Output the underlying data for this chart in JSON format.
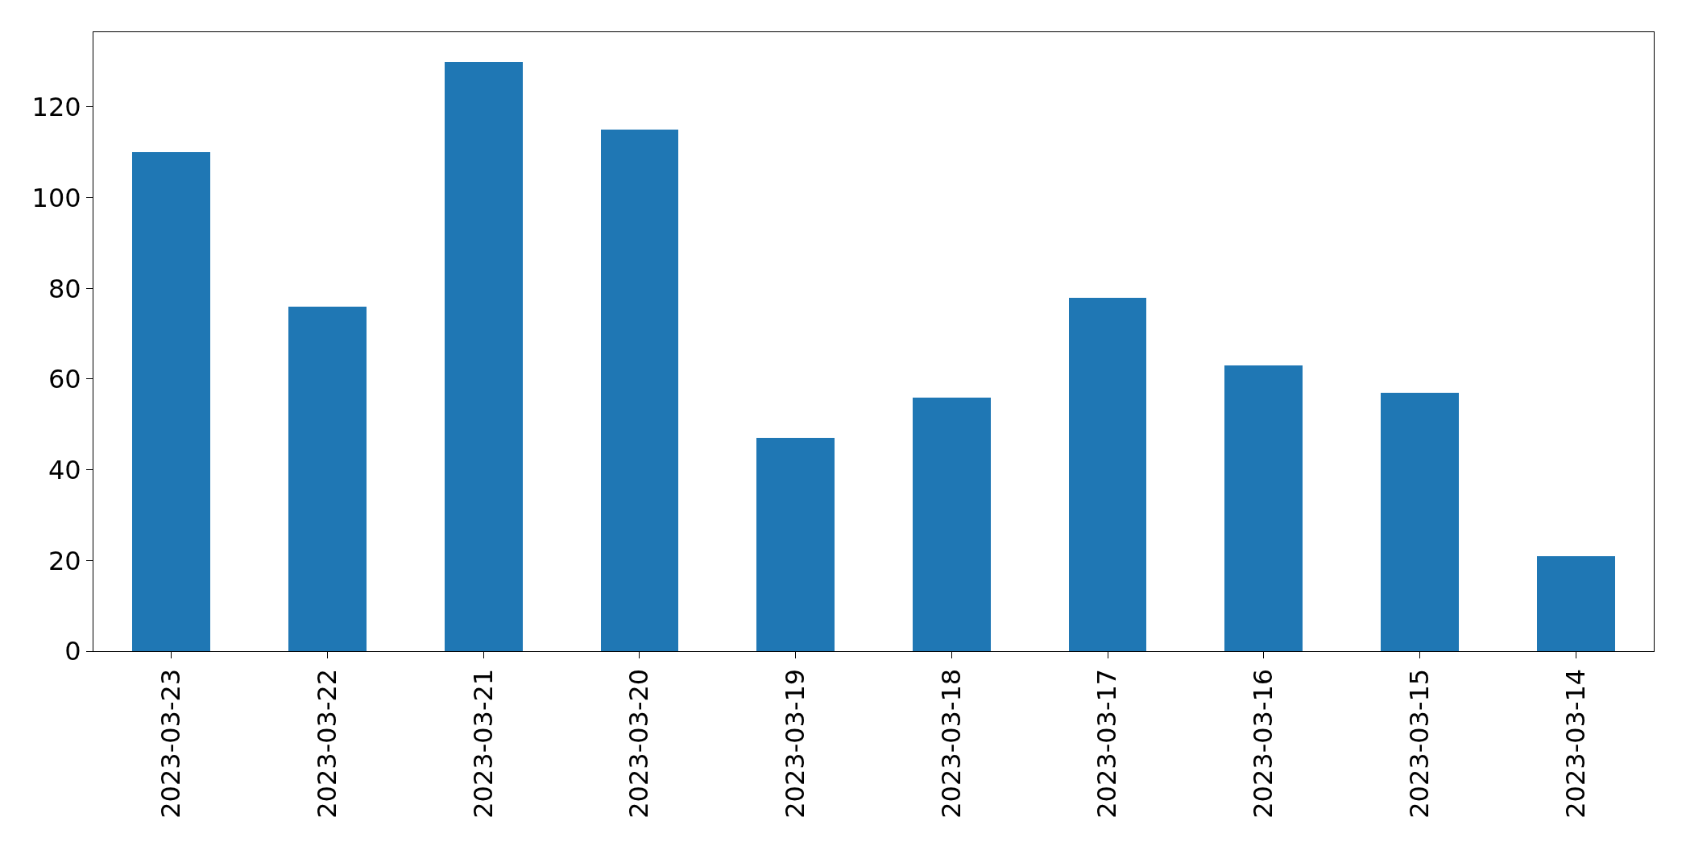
{
  "chart_data": {
    "type": "bar",
    "categories": [
      "2023-03-23",
      "2023-03-22",
      "2023-03-21",
      "2023-03-20",
      "2023-03-19",
      "2023-03-18",
      "2023-03-17",
      "2023-03-16",
      "2023-03-15",
      "2023-03-14"
    ],
    "values": [
      110,
      76,
      130,
      115,
      47,
      56,
      78,
      63,
      57,
      21
    ],
    "color": "#1f77b4",
    "ylim": [
      0,
      136.5
    ],
    "yticks": [
      0,
      20,
      40,
      60,
      80,
      100,
      120
    ],
    "grid": false
  }
}
